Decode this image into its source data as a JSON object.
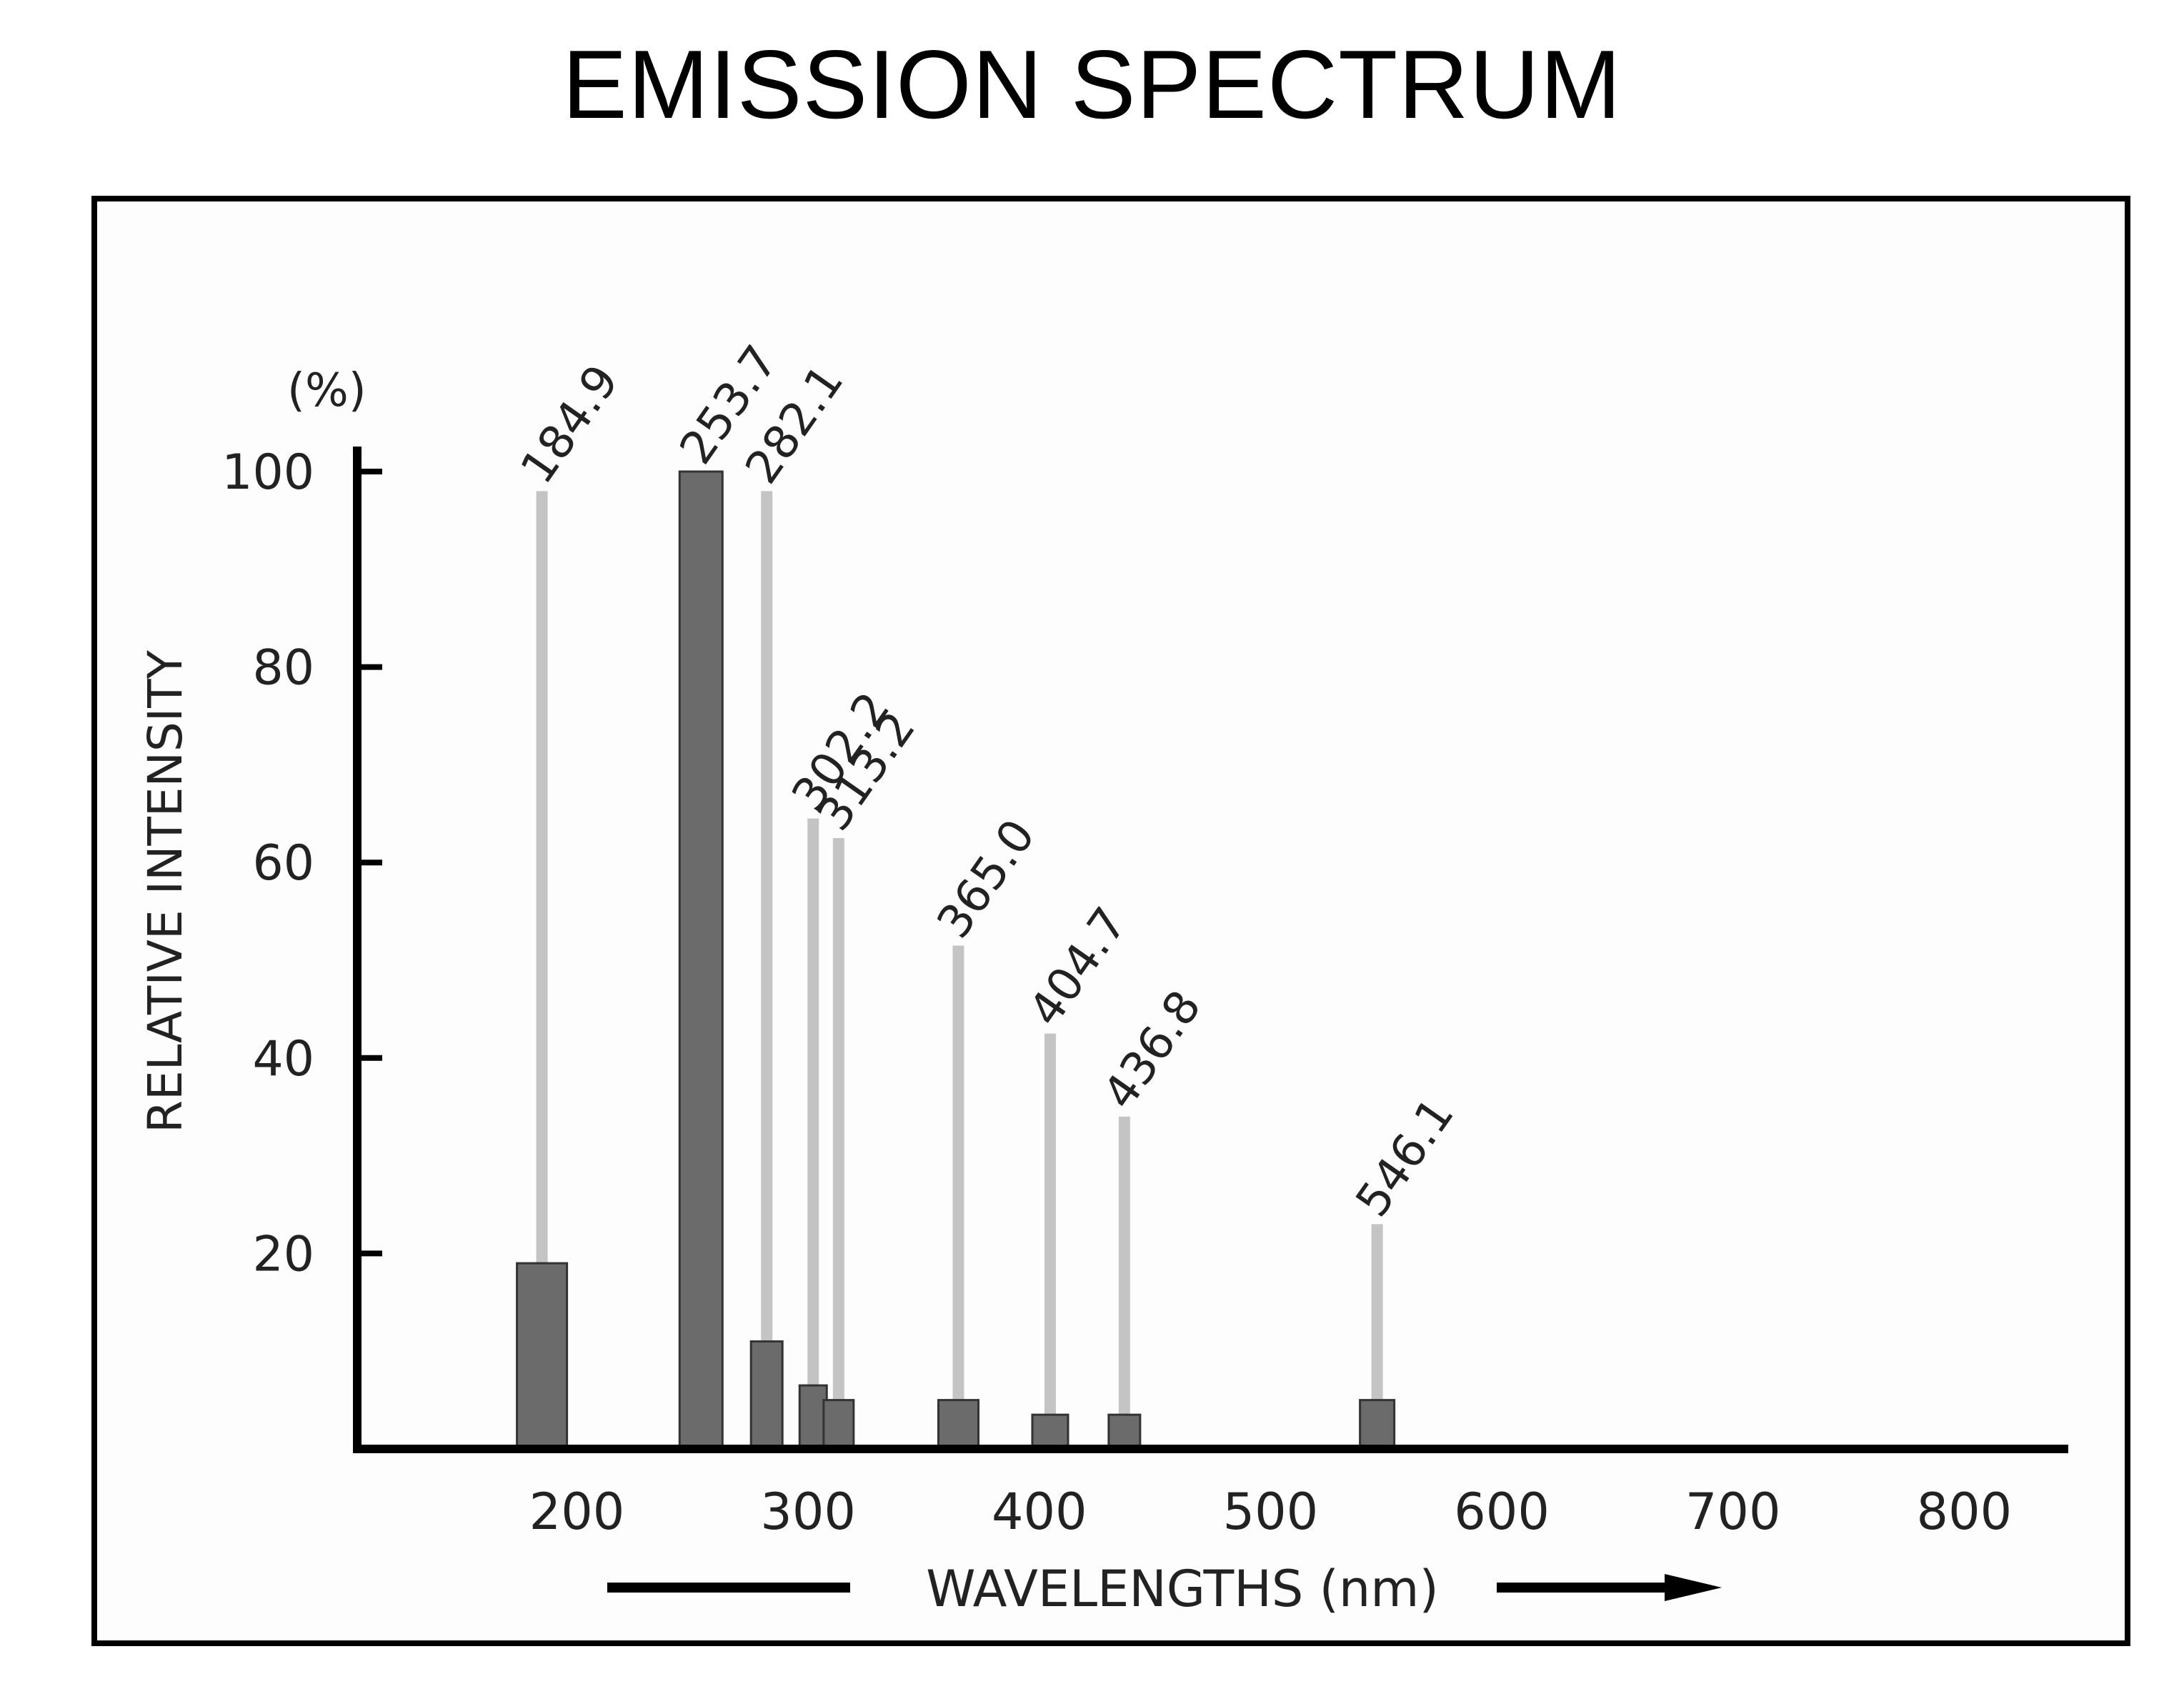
{
  "chart_data": {
    "type": "bar",
    "title": "EMISSION SPECTRUM",
    "xlabel": "WAVELENGTHS (nm)",
    "ylabel": "RELATIVE INTENSITY",
    "yunit": "(%)",
    "xlim": [
      105,
      845
    ],
    "ylim": [
      0,
      100
    ],
    "xticks": [
      200,
      300,
      400,
      500,
      600,
      700,
      800
    ],
    "yticks": [
      20,
      40,
      60,
      80,
      100
    ],
    "grid": false,
    "colors": {
      "bar": "#6b6b6b",
      "leader": "#c4c4c4",
      "axis": "#000000"
    },
    "lines": [
      {
        "label": "184.9",
        "x": 184.9,
        "value": 19
      },
      {
        "label": "253.7",
        "x": 253.7,
        "value": 100
      },
      {
        "label": "282.1",
        "x": 282.1,
        "value": 11
      },
      {
        "label": "302.2",
        "x": 302.2,
        "value": 6.5
      },
      {
        "label": "313.2",
        "x": 313.2,
        "value": 5
      },
      {
        "label": "365.0",
        "x": 365.0,
        "value": 5
      },
      {
        "label": "404.7",
        "x": 404.7,
        "value": 3.5
      },
      {
        "label": "436.8",
        "x": 436.8,
        "value": 3.5
      },
      {
        "label": "546.1",
        "x": 546.1,
        "value": 5
      }
    ]
  }
}
